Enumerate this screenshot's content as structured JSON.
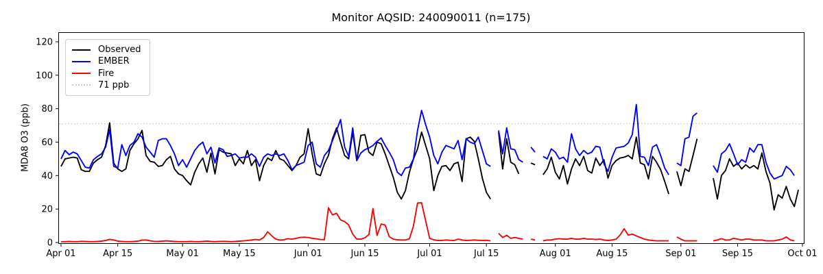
{
  "chart_data": {
    "type": "line",
    "title": "Monitor AQSID: 240090011 (n=175)",
    "monitor_aqsid": "240090011",
    "n_observations": 175,
    "xlabel": "",
    "ylabel": "MDA8 O3 (ppb)",
    "ylim": [
      -0.5,
      125.7
    ],
    "grid": false,
    "threshold": {
      "value": 71,
      "label": "71 ppb",
      "color": "#c9c9c9",
      "style": "dotted"
    },
    "legend": {
      "position": "upper left",
      "entries": [
        {
          "label": "Observed",
          "color": "#000000",
          "style": "solid"
        },
        {
          "label": "EMBER",
          "color": "#0000ff",
          "style": "solid"
        },
        {
          "label": "Fire",
          "color": "#ff0000",
          "style": "solid"
        },
        {
          "label": "71 ppb",
          "color": "#c9c9c9",
          "style": "dotted"
        }
      ]
    },
    "y_axis": {
      "ticks": [
        {
          "value": 0,
          "label": "0"
        },
        {
          "value": 20,
          "label": "20"
        },
        {
          "value": 40,
          "label": "40"
        },
        {
          "value": 60,
          "label": "60"
        },
        {
          "value": 80,
          "label": "80"
        },
        {
          "value": 100,
          "label": "100"
        },
        {
          "value": 120,
          "label": "120"
        }
      ]
    },
    "x_axis": {
      "unit": "days since Apr 01",
      "total_days": 183,
      "ticks": [
        {
          "day": 0,
          "label": "Apr 01"
        },
        {
          "day": 14,
          "label": "Apr 15"
        },
        {
          "day": 30,
          "label": "May 01"
        },
        {
          "day": 44,
          "label": "May 15"
        },
        {
          "day": 61,
          "label": "Jun 01"
        },
        {
          "day": 75,
          "label": "Jun 15"
        },
        {
          "day": 91,
          "label": "Jul 01"
        },
        {
          "day": 105,
          "label": "Jul 15"
        },
        {
          "day": 122,
          "label": "Aug 01"
        },
        {
          "day": 136,
          "label": "Aug 15"
        },
        {
          "day": 153,
          "label": "Sep 01"
        },
        {
          "day": 167,
          "label": "Sep 15"
        },
        {
          "day": 183,
          "label": "Oct 01"
        }
      ]
    },
    "series": [
      {
        "name": "Observed",
        "color": "#000000",
        "values": [
          45.5,
          50,
          50.5,
          51,
          50.5,
          43.5,
          42.5,
          42.5,
          47.5,
          49.5,
          51,
          58,
          71.5,
          47.5,
          44,
          42.5,
          44,
          55,
          59,
          62,
          67,
          52,
          48.5,
          48,
          45.5,
          46,
          49.5,
          51.5,
          44,
          41,
          40,
          37,
          34.5,
          42,
          47,
          50.5,
          42,
          53.5,
          41,
          55.5,
          54,
          53.5,
          53,
          46,
          50,
          47,
          55,
          46,
          49.5,
          37,
          46,
          50.5,
          49,
          55,
          50,
          49,
          46,
          43,
          46,
          51,
          53,
          68,
          53,
          41,
          40,
          47,
          52,
          62,
          68.5,
          60,
          52,
          50,
          66,
          49,
          64,
          64.5,
          54,
          52,
          60,
          59,
          53,
          46,
          39,
          30,
          26,
          31,
          42,
          50,
          56,
          66,
          58,
          50,
          31,
          40,
          45.5,
          46,
          43,
          47,
          48,
          36.5,
          62,
          63,
          60.5,
          50,
          38.5,
          30,
          26,
          null,
          66,
          44,
          62,
          48,
          46.5,
          41,
          null,
          null,
          47.5,
          46.5,
          null,
          40.5,
          44,
          51,
          42,
          38,
          46,
          35,
          44,
          50,
          46,
          51.5,
          43,
          41.5,
          50.5,
          46,
          49.5,
          38.5,
          46,
          49,
          50.5,
          51,
          52,
          50,
          63,
          47.5,
          46.5,
          38,
          51.5,
          48,
          43.5,
          36.5,
          29,
          null,
          42.5,
          34,
          44,
          42.5,
          52,
          62,
          null,
          null,
          null,
          38.5,
          26,
          40,
          43,
          50,
          45.5,
          47.5,
          44,
          46.5,
          44.5,
          46,
          44,
          53.5,
          42.5,
          35.5,
          19.5,
          28.5,
          26.5,
          33.5,
          26,
          21.5,
          31.5
        ]
      },
      {
        "name": "EMBER",
        "color": "#0000ff",
        "values": [
          50,
          55,
          52.5,
          54,
          53,
          49,
          45,
          44.5,
          49.5,
          51.5,
          53,
          57,
          67.5,
          45.5,
          44.5,
          58.5,
          52,
          58,
          60,
          65,
          63,
          57,
          54,
          51,
          61,
          62,
          62,
          58,
          53,
          46,
          49.5,
          45,
          50,
          55,
          58,
          60,
          53,
          57,
          47.5,
          56.5,
          55.5,
          51.5,
          52,
          53,
          50.5,
          51,
          51,
          53,
          51,
          45.5,
          51,
          53,
          52,
          53,
          52,
          53,
          49,
          43.5,
          46,
          47,
          48,
          58,
          60,
          47,
          45,
          52,
          55,
          61,
          67,
          73.5,
          57,
          51.5,
          68.5,
          49,
          53.5,
          55.5,
          56.5,
          58,
          60.5,
          62.5,
          58,
          54,
          49.5,
          42,
          40,
          44.5,
          45,
          50,
          67,
          79,
          70.5,
          63,
          52,
          47,
          54,
          58,
          57,
          56,
          61,
          49.5,
          62,
          60,
          59,
          63,
          55,
          47,
          45.5,
          null,
          67,
          53,
          68.5,
          56,
          55.5,
          49.5,
          48,
          null,
          57,
          54,
          null,
          51.5,
          50,
          56,
          54,
          50,
          51,
          48,
          65,
          56,
          52,
          55,
          53,
          54,
          57.5,
          57,
          47,
          42.5,
          51,
          56.5,
          57,
          57.5,
          59.5,
          64.5,
          82.5,
          51.5,
          51,
          46,
          57,
          58.5,
          52,
          44.5,
          40.5,
          null,
          47.5,
          46,
          62,
          63,
          75.5,
          77.5,
          null,
          null,
          null,
          46,
          42,
          53,
          55,
          59,
          53,
          46.5,
          49.5,
          48,
          56.5,
          54,
          58.5,
          58.5,
          48,
          41.5,
          38,
          39,
          40,
          45.5,
          43.5,
          40,
          null
        ]
      },
      {
        "name": "Fire",
        "color": "#ff0000",
        "values": [
          0.5,
          0.5,
          0.6,
          0.5,
          0.5,
          0.7,
          0.6,
          0.5,
          0.5,
          0.6,
          0.8,
          1.2,
          1.9,
          1.5,
          0.8,
          0.6,
          0.5,
          0.5,
          0.6,
          0.8,
          1.4,
          1.5,
          1,
          0.7,
          0.6,
          0.8,
          1,
          0.8,
          0.6,
          0.5,
          0.5,
          0.5,
          0.6,
          0.5,
          0.5,
          0.6,
          0.8,
          0.6,
          0.5,
          0.6,
          0.7,
          0.6,
          0.5,
          0.6,
          0.8,
          1,
          1.2,
          1.5,
          1.8,
          1.5,
          3,
          6.4,
          4,
          2,
          1.5,
          1.6,
          2.3,
          2,
          2.5,
          3,
          3.2,
          3,
          2.5,
          2.2,
          1.8,
          1.7,
          20.8,
          16.5,
          17.5,
          13.5,
          12.5,
          10.5,
          5,
          2,
          2,
          2.8,
          4.8,
          20.3,
          4.2,
          11,
          10.5,
          3.5,
          2,
          1.6,
          1.5,
          1.5,
          2.2,
          10,
          23.6,
          23.8,
          13,
          2.5,
          1.6,
          1.2,
          1.2,
          1.5,
          1.3,
          1.2,
          2,
          1.5,
          1.2,
          1.3,
          1.5,
          1.3,
          1.2,
          1.3,
          1,
          null,
          5.5,
          3,
          4.3,
          2.5,
          3,
          2.5,
          2,
          null,
          2,
          1.5,
          null,
          1,
          1.5,
          1.5,
          2,
          2.3,
          2,
          2,
          2.5,
          2,
          2,
          2.5,
          2,
          2,
          1.8,
          2,
          1.5,
          1.2,
          1.5,
          2,
          4.5,
          8.2,
          4.4,
          5,
          4,
          3,
          2,
          1.5,
          1.2,
          1,
          1,
          1,
          1,
          null,
          3.3,
          2,
          1,
          1,
          1,
          1,
          null,
          null,
          null,
          1,
          1.5,
          2.3,
          1.5,
          1.5,
          2.5,
          2,
          1.5,
          2,
          2,
          1.5,
          1.5,
          1.5,
          1,
          1,
          1,
          1.5,
          2,
          3.3,
          1.5,
          1,
          null
        ]
      }
    ]
  }
}
